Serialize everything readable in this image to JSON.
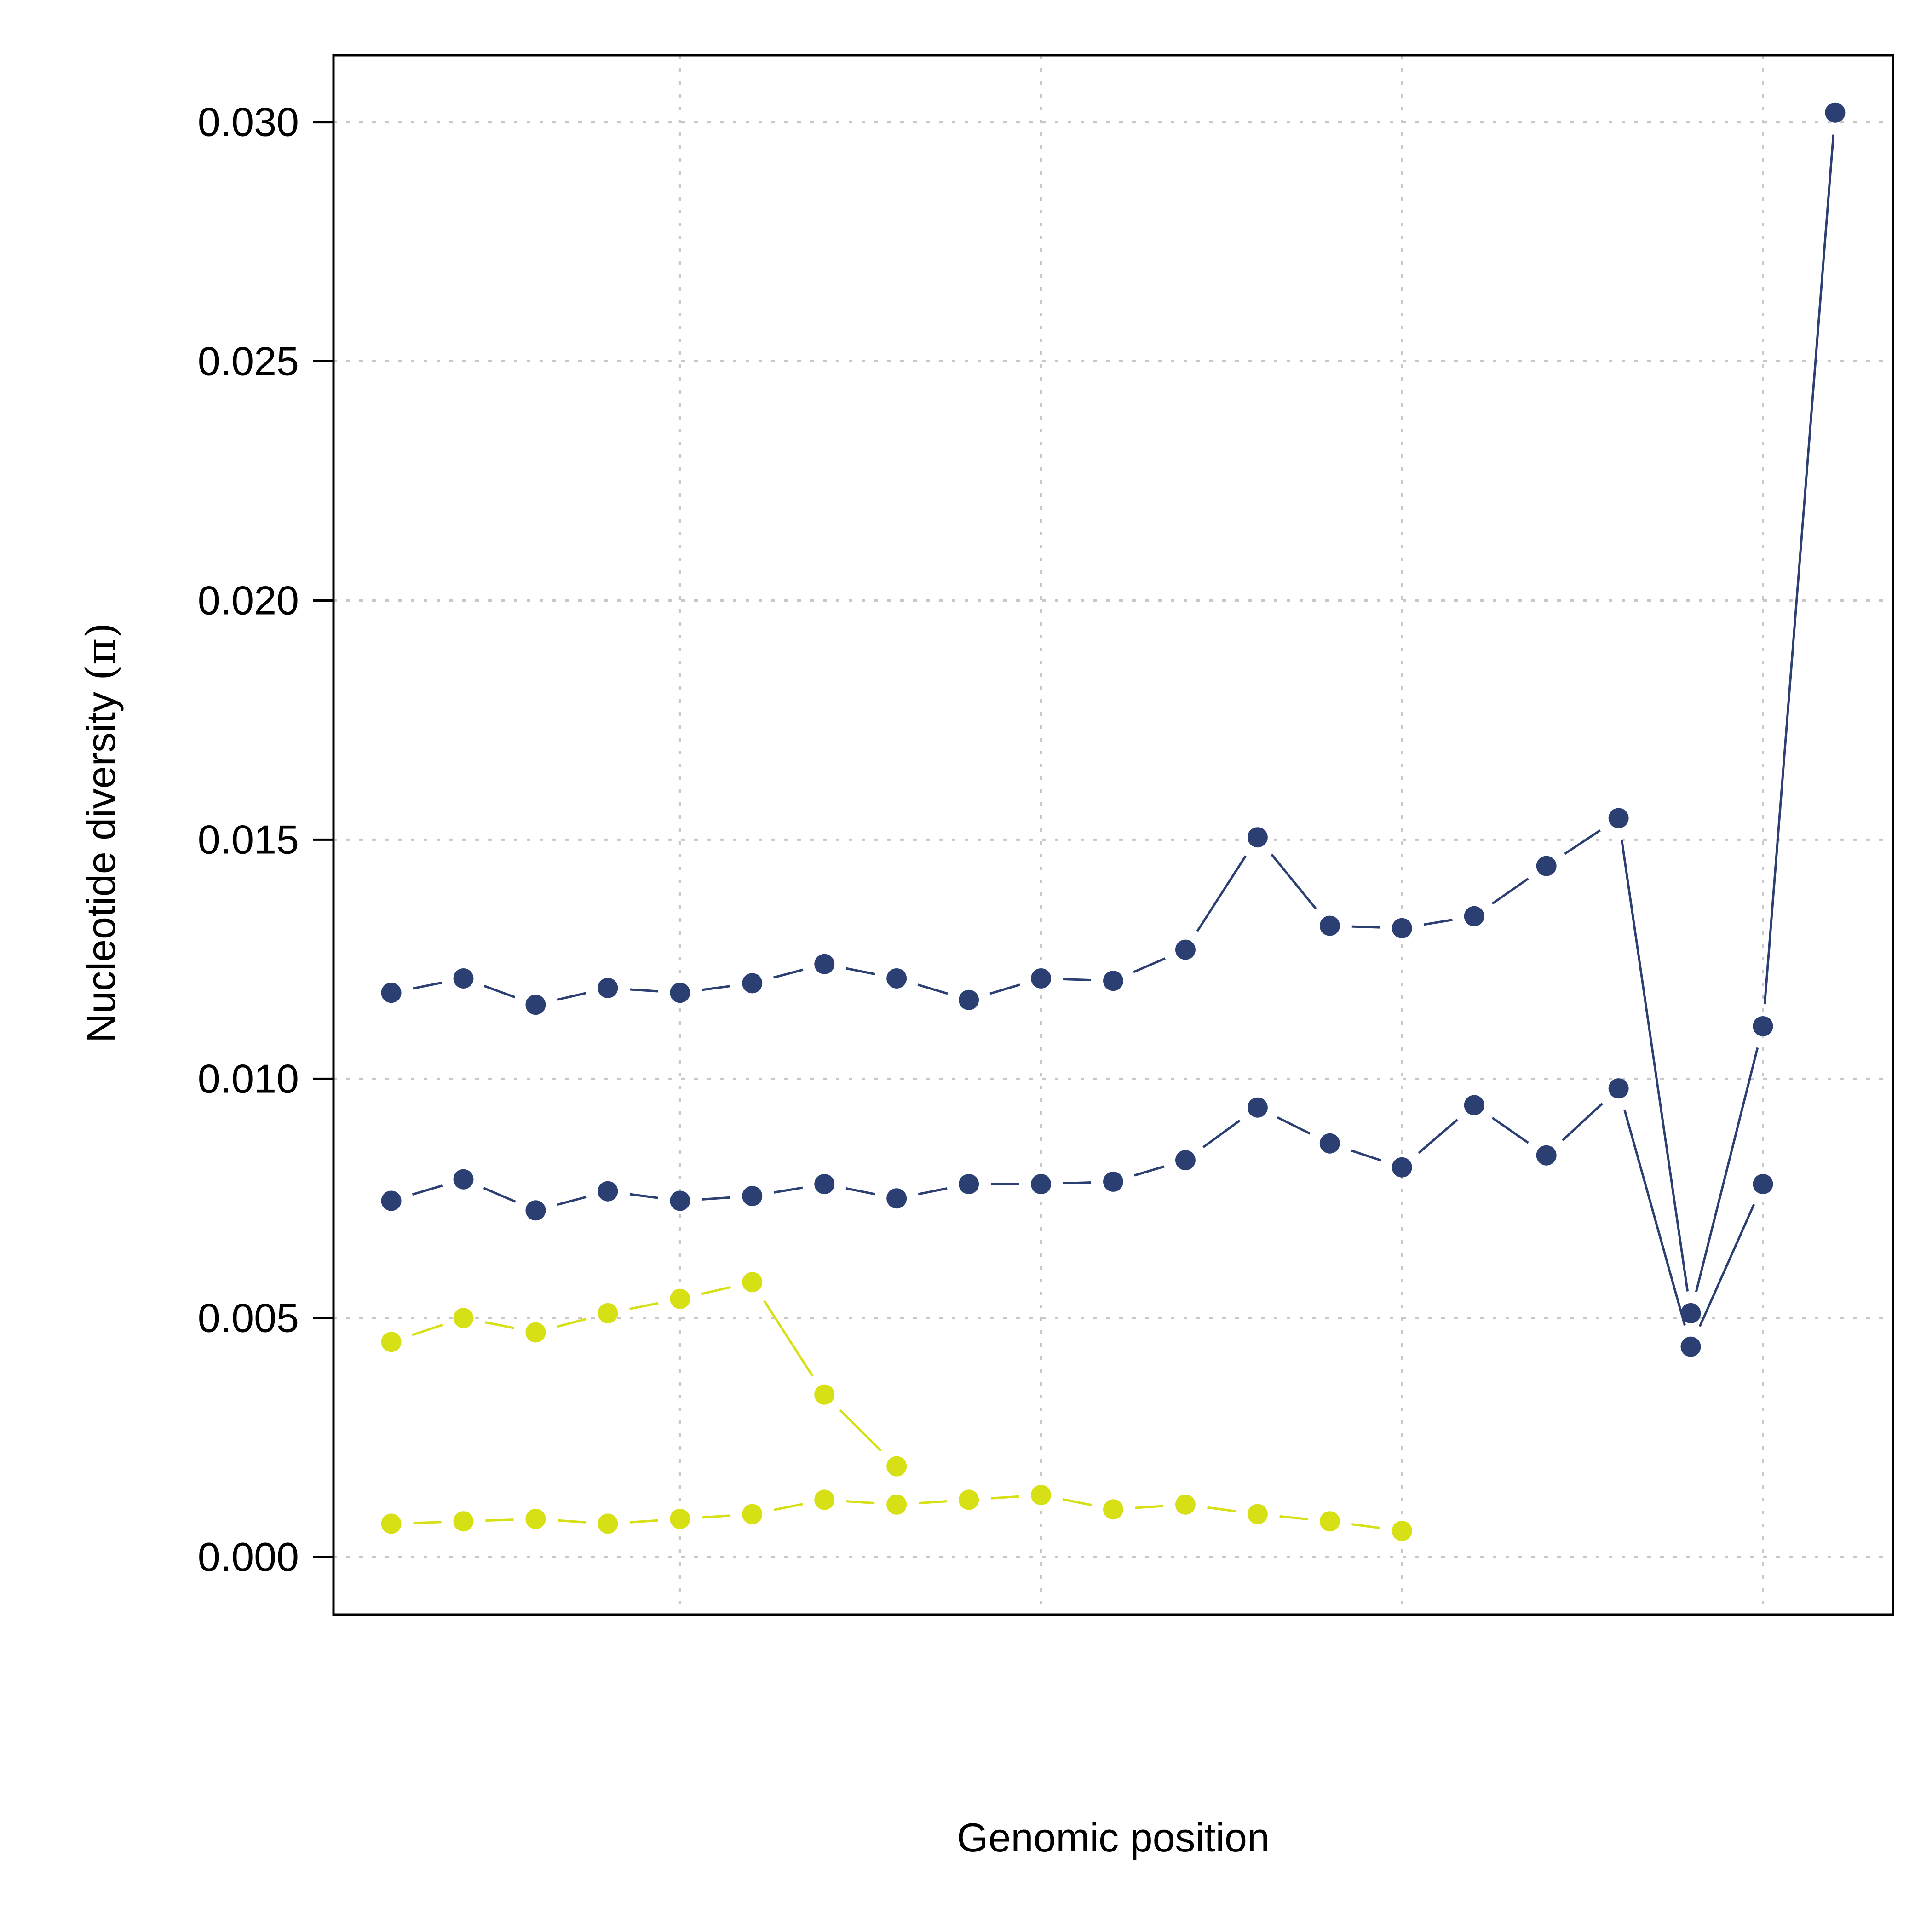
{
  "chart_data": {
    "type": "line",
    "title": "",
    "xlabel": "Genomic position",
    "ylabel": "Nucleotide diversity (π)",
    "ylabel_parts": {
      "text": "Nucleotide diversity ",
      "symbol": "(π)"
    },
    "ylim": [
      -0.0012,
      0.0314
    ],
    "xlim": [
      0.2,
      21.8
    ],
    "yticks": [
      "0.000",
      "0.005",
      "0.010",
      "0.015",
      "0.020",
      "0.025",
      "0.030"
    ],
    "yticks_values": [
      0,
      0.005,
      0.01,
      0.015,
      0.02,
      0.025,
      0.03
    ],
    "xgrid_at": [
      5,
      10,
      15,
      20
    ],
    "grid": true,
    "legend": "none",
    "colors": {
      "navy": "#2b3f73",
      "yellow": "#d6e014",
      "grid": "#c8c8c8",
      "frame": "#000000"
    },
    "series": [
      {
        "color": "#2b3f73",
        "x": [
          1,
          2,
          3,
          4,
          5,
          6,
          7,
          8,
          9,
          10,
          11,
          12,
          13,
          14,
          15,
          16,
          17,
          18,
          19,
          20,
          21
        ],
        "values": [
          0.0118,
          0.0121,
          0.01155,
          0.0119,
          0.0118,
          0.012,
          0.0124,
          0.0121,
          0.01165,
          0.0121,
          0.01205,
          0.0127,
          0.01505,
          0.0132,
          0.01315,
          0.0134,
          0.01445,
          0.01545,
          0.0051,
          0.0111,
          0.0302
        ]
      },
      {
        "color": "#2b3f73",
        "x": [
          1,
          2,
          3,
          4,
          5,
          6,
          7,
          8,
          9,
          10,
          11,
          12,
          13,
          14,
          15,
          16,
          17,
          18,
          19,
          20
        ],
        "values": [
          0.00745,
          0.0079,
          0.00725,
          0.00765,
          0.00745,
          0.00755,
          0.0078,
          0.0075,
          0.0078,
          0.0078,
          0.00785,
          0.0083,
          0.0094,
          0.00865,
          0.00815,
          0.00945,
          0.0084,
          0.0098,
          0.0044,
          0.0078
        ]
      },
      {
        "color": "#d6e014",
        "x": [
          1,
          2,
          3,
          4,
          5,
          6,
          7,
          8
        ],
        "values": [
          0.0045,
          0.005,
          0.0047,
          0.0051,
          0.0054,
          0.00575,
          0.0034,
          0.0019
        ]
      },
      {
        "color": "#d6e014",
        "x": [
          1,
          2,
          3,
          4,
          5,
          6,
          7,
          8,
          9,
          10,
          11,
          12,
          13,
          14,
          15
        ],
        "values": [
          0.0007,
          0.00075,
          0.0008,
          0.0007,
          0.0008,
          0.0009,
          0.0012,
          0.0011,
          0.0012,
          0.0013,
          0.001,
          0.0011,
          0.0009,
          0.00075,
          0.00055
        ]
      }
    ]
  }
}
